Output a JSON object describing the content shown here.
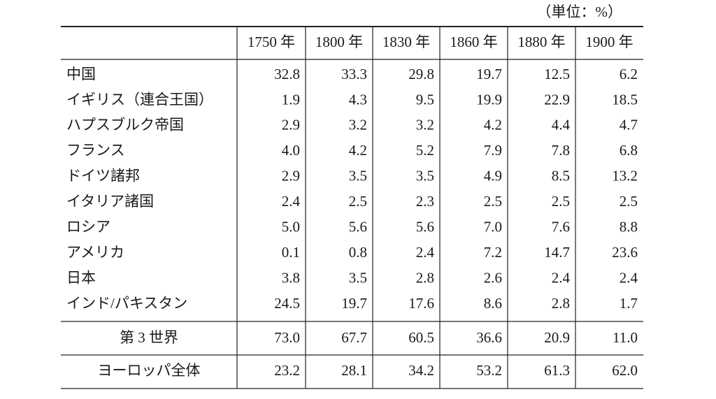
{
  "unit": "（単位：%）",
  "table": {
    "columns": [
      "1750 年",
      "1800 年",
      "1830 年",
      "1860 年",
      "1880 年",
      "1900 年"
    ],
    "rows": [
      {
        "label": "中国",
        "values": [
          "32.8",
          "33.3",
          "29.8",
          "19.7",
          "12.5",
          "6.2"
        ]
      },
      {
        "label": "イギリス（連合王国）",
        "values": [
          "1.9",
          "4.3",
          "9.5",
          "19.9",
          "22.9",
          "18.5"
        ]
      },
      {
        "label": "ハプスブルク帝国",
        "values": [
          "2.9",
          "3.2",
          "3.2",
          "4.2",
          "4.4",
          "4.7"
        ]
      },
      {
        "label": "フランス",
        "values": [
          "4.0",
          "4.2",
          "5.2",
          "7.9",
          "7.8",
          "6.8"
        ]
      },
      {
        "label": "ドイツ諸邦",
        "values": [
          "2.9",
          "3.5",
          "3.5",
          "4.9",
          "8.5",
          "13.2"
        ]
      },
      {
        "label": "イタリア諸国",
        "values": [
          "2.4",
          "2.5",
          "2.3",
          "2.5",
          "2.5",
          "2.5"
        ]
      },
      {
        "label": "ロシア",
        "values": [
          "5.0",
          "5.6",
          "5.6",
          "7.0",
          "7.6",
          "8.8"
        ]
      },
      {
        "label": "アメリカ",
        "values": [
          "0.1",
          "0.8",
          "2.4",
          "7.2",
          "14.7",
          "23.6"
        ]
      },
      {
        "label": "日本",
        "values": [
          "3.8",
          "3.5",
          "2.8",
          "2.6",
          "2.4",
          "2.4"
        ]
      },
      {
        "label": "インド/パキスタン",
        "values": [
          "24.5",
          "19.7",
          "17.6",
          "8.6",
          "2.8",
          "1.7"
        ]
      }
    ],
    "summary": [
      {
        "label": "第 3 世界",
        "values": [
          "73.0",
          "67.7",
          "60.5",
          "36.6",
          "20.9",
          "11.0"
        ]
      },
      {
        "label": "ヨーロッパ全体",
        "values": [
          "23.2",
          "28.1",
          "34.2",
          "53.2",
          "61.3",
          "62.0"
        ]
      }
    ]
  }
}
